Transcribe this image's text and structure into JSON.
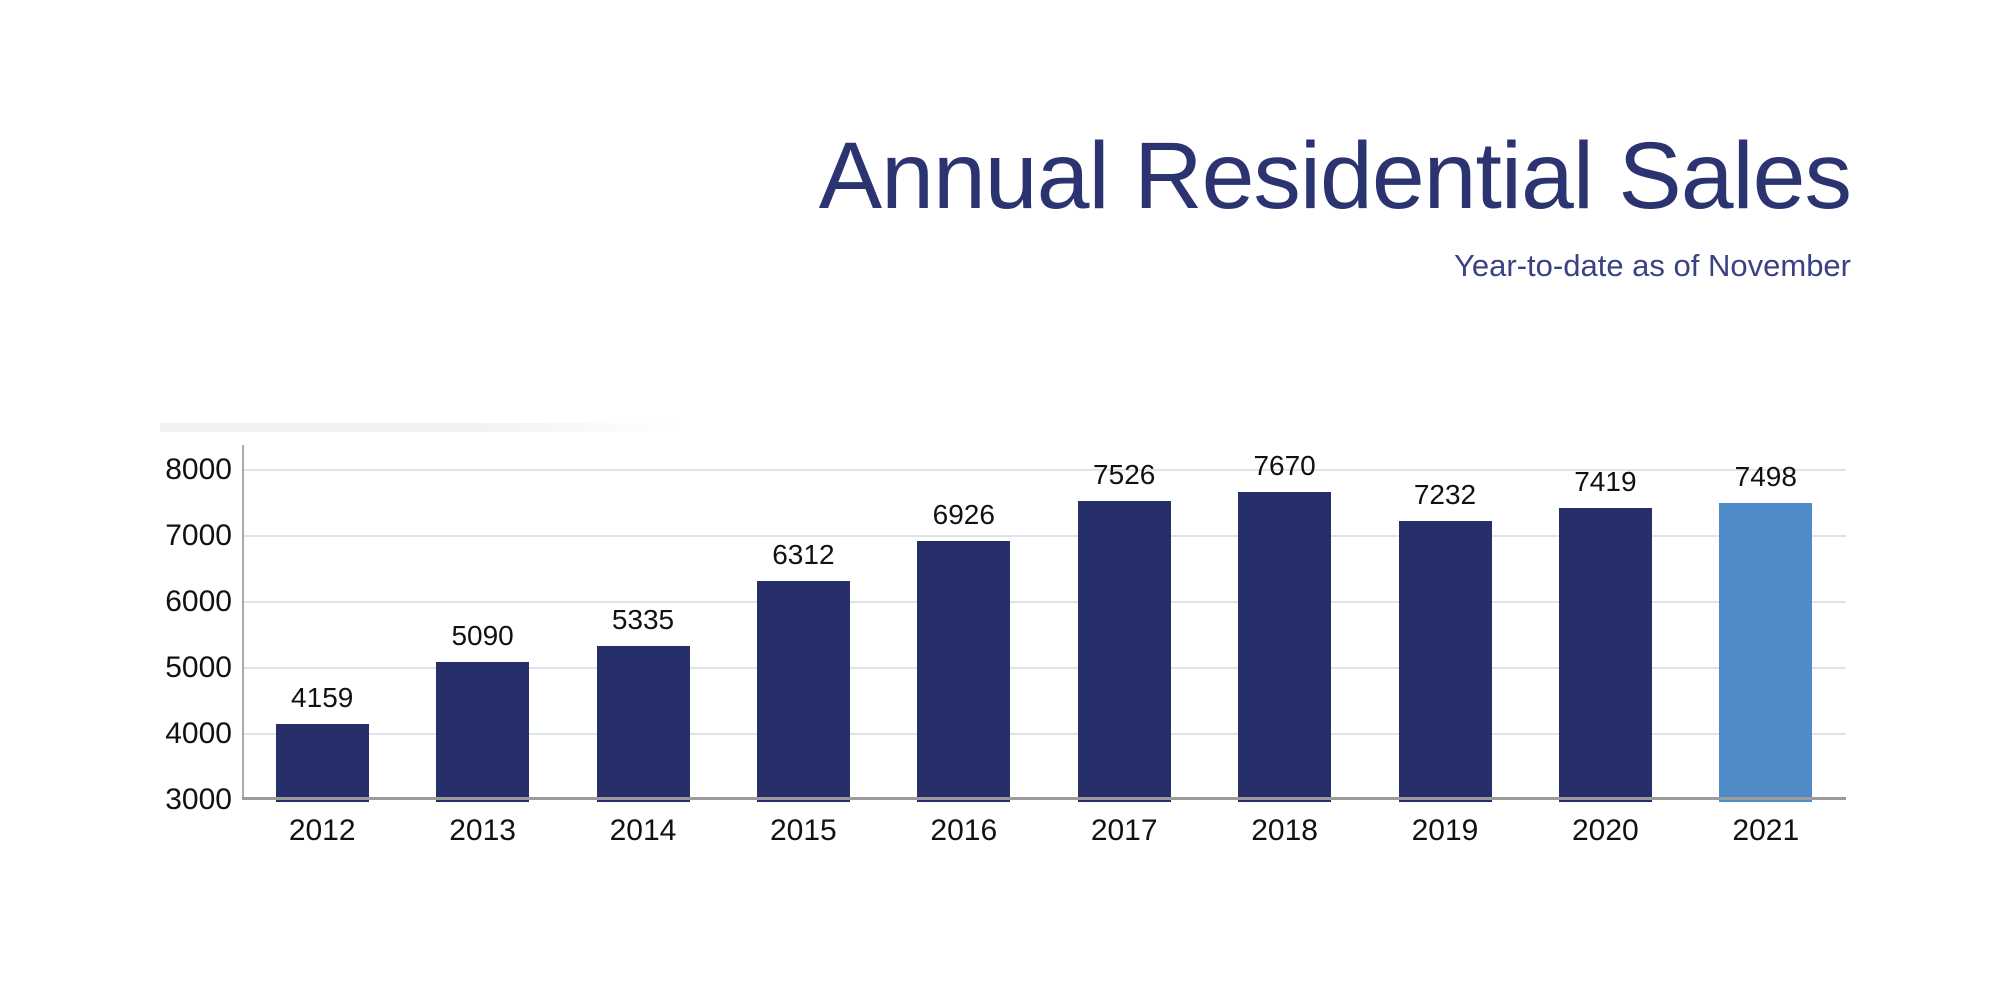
{
  "header": {
    "title": "Annual Residential Sales",
    "subtitle": "Year-to-date as of November"
  },
  "colors": {
    "title_text": "#2B3470",
    "subtitle_text": "#3A4283",
    "bar": "#262F69",
    "bar_highlight": "#4F8CC7",
    "gridline": "#DDE3EC",
    "x_axis_line": "#9B9B9B",
    "y_axis_line": "#ABABAB",
    "label_text": "#111111"
  },
  "chart_data": {
    "type": "bar",
    "title": "Annual Residential Sales",
    "subtitle": "Year-to-date as of November",
    "categories": [
      "2012",
      "2013",
      "2014",
      "2015",
      "2016",
      "2017",
      "2018",
      "2019",
      "2020",
      "2021"
    ],
    "values": [
      4159,
      5090,
      5335,
      6312,
      6926,
      7526,
      7670,
      7232,
      7419,
      7498
    ],
    "highlight_category": "2021",
    "xlabel": "",
    "ylabel": "",
    "ylim": [
      3000,
      8000
    ],
    "yticks": [
      8000,
      7000,
      6000,
      5000,
      4000,
      3000
    ],
    "grid": true,
    "data_labels": true,
    "legend": false
  }
}
